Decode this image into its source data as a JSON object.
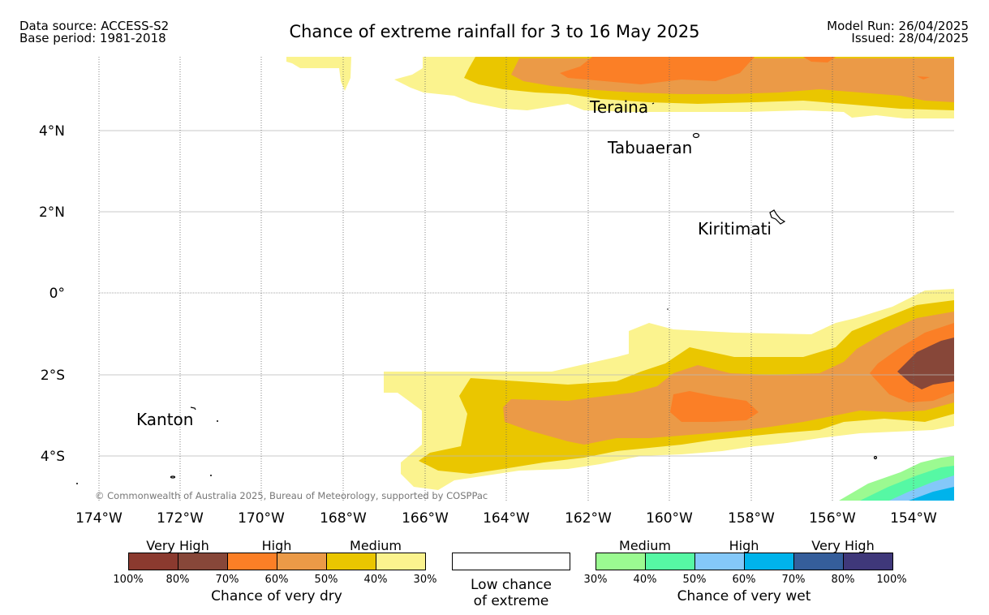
{
  "header": {
    "data_source": "Data source: ACCESS-S2",
    "base_period": "Base period: 1981-2018",
    "title": "Chance of extreme rainfall for 3 to 16 May 2025",
    "model_run": "Model Run: 26/04/2025",
    "issued": "Issued: 28/04/2025"
  },
  "map": {
    "lon_labels": [
      "174°W",
      "172°W",
      "170°W",
      "168°W",
      "166°W",
      "164°W",
      "162°W",
      "160°W",
      "158°W",
      "156°W",
      "154°W"
    ],
    "lat_labels": [
      "4°N",
      "2°N",
      "0°",
      "2°S",
      "4°S"
    ],
    "places": [
      "Teraina",
      "Tabuaeran",
      "Kiritimati",
      "Kanton"
    ],
    "copyright": "© Commonwealth of Australia 2025, Bureau of Meteorology, supported by COSPPac",
    "colors": {
      "very_high_dry": "#8b3a2f",
      "very_high_dry_2": "#874739",
      "high_dry": "#fb7f26",
      "high_dry_2": "#eb9a47",
      "medium_dry": "#eac600",
      "medium_dry_2": "#fbf38e",
      "medium_wet": "#9bfa91",
      "medium_wet_2": "#56f8a4",
      "high_wet": "#84c8f9",
      "high_wet_2": "#00b3eb",
      "very_high_wet": "#355e9b",
      "very_high_wet_2": "#3f387a"
    }
  },
  "legend": {
    "dry": {
      "categories": [
        "Very High",
        "High",
        "Medium"
      ],
      "ticks": [
        "100%",
        "80%",
        "70%",
        "60%",
        "50%",
        "40%",
        "30%"
      ],
      "title": "Chance of very dry"
    },
    "low": {
      "line1": "Low chance",
      "line2": "of extreme"
    },
    "wet": {
      "categories": [
        "Medium",
        "High",
        "Very High"
      ],
      "ticks": [
        "30%",
        "40%",
        "50%",
        "60%",
        "70%",
        "80%",
        "100%"
      ],
      "title": "Chance of very wet"
    }
  }
}
